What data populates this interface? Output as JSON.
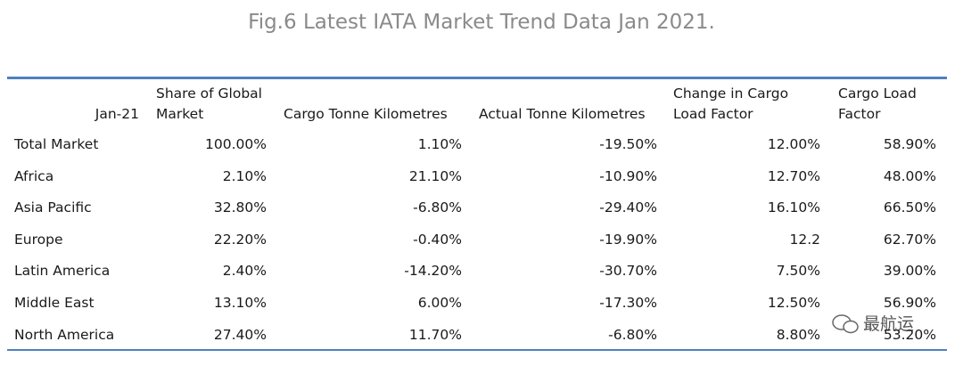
{
  "title": "Fig.6 Latest IATA Market Trend Data Jan 2021.",
  "table": {
    "header": [
      "Jan-21",
      "Share of Global Market",
      "Cargo Tonne Kilometres",
      "Actual Tonne Kilometres",
      "Change in Cargo Load Factor",
      "Cargo Load Factor"
    ],
    "rows": [
      [
        "Total Market",
        "100.00%",
        "1.10%",
        "-19.50%",
        "12.00%",
        "58.90%"
      ],
      [
        "Africa",
        "2.10%",
        "21.10%",
        "-10.90%",
        "12.70%",
        "48.00%"
      ],
      [
        "Asia Pacific",
        "32.80%",
        "-6.80%",
        "-29.40%",
        "16.10%",
        "66.50%"
      ],
      [
        "Europe",
        "22.20%",
        "-0.40%",
        "-19.90%",
        "12.2",
        "62.70%"
      ],
      [
        "Latin America",
        "2.40%",
        "-14.20%",
        "-30.70%",
        "7.50%",
        "39.00%"
      ],
      [
        "Middle East",
        "13.10%",
        "6.00%",
        "-17.30%",
        "12.50%",
        "56.90%"
      ],
      [
        "North America",
        "27.40%",
        "11.70%",
        "-6.80%",
        "8.80%",
        "53.20%"
      ]
    ]
  },
  "watermark": "最航运"
}
